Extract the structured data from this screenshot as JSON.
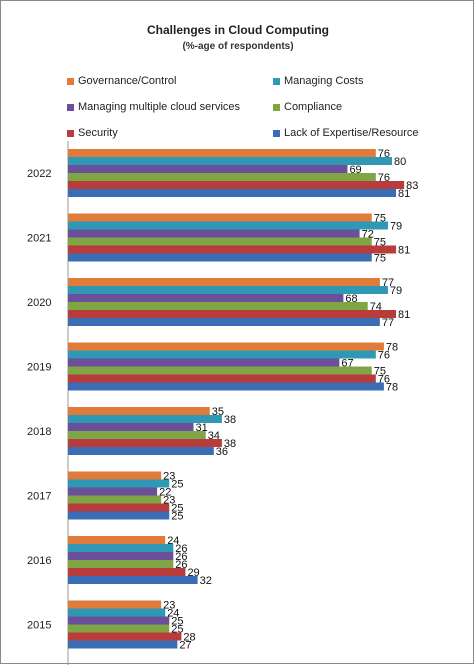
{
  "chart_data": {
    "type": "bar",
    "orientation": "horizontal",
    "title": "Challenges in  Cloud Computing",
    "subtitle": "(%-age of respondents)",
    "categories": [
      "2022",
      "2021",
      "2020",
      "2019",
      "2018",
      "2017",
      "2016",
      "2015"
    ],
    "series": [
      {
        "name": "Governance/Control",
        "color": "#e07b39",
        "values": [
          76,
          75,
          77,
          78,
          35,
          23,
          24,
          23
        ]
      },
      {
        "name": "Managing Costs",
        "color": "#2e98b5",
        "values": [
          80,
          79,
          79,
          76,
          38,
          25,
          26,
          24
        ]
      },
      {
        "name": "Managing multiple cloud services",
        "color": "#6b4f9a",
        "values": [
          69,
          72,
          68,
          67,
          31,
          22,
          26,
          25
        ]
      },
      {
        "name": "Compliance",
        "color": "#7fa544",
        "values": [
          76,
          75,
          74,
          75,
          34,
          23,
          26,
          25
        ]
      },
      {
        "name": "Security",
        "color": "#b83c3c",
        "values": [
          83,
          81,
          81,
          76,
          38,
          25,
          29,
          28
        ]
      },
      {
        "name": "Lack of Expertise/Resource",
        "color": "#3a6db4",
        "values": [
          81,
          75,
          77,
          78,
          36,
          25,
          32,
          27
        ]
      }
    ],
    "data_labels": true,
    "legend": "top",
    "grid": false
  }
}
